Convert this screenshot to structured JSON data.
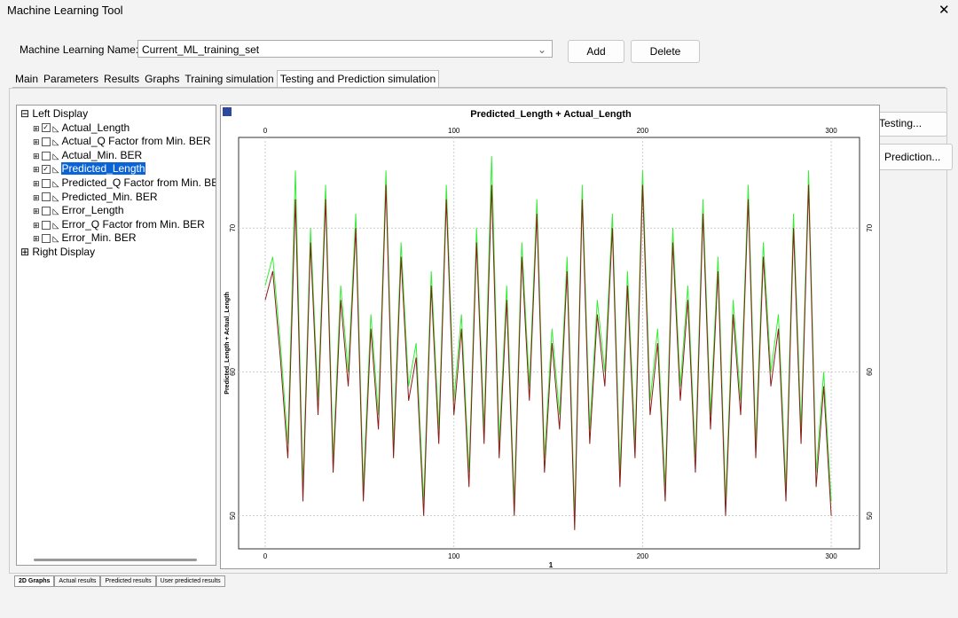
{
  "window": {
    "title": "Machine Learning Tool",
    "close": "✕"
  },
  "toolbar": {
    "name_label": "Machine Learning Name:",
    "name_value": "Current_ML_training_set",
    "add": "Add",
    "delete": "Delete"
  },
  "tabs": [
    "Main",
    "Parameters",
    "Results",
    "Graphs",
    "Training simulation",
    "Testing and Prediction simulation"
  ],
  "tree": {
    "left": "Left Display",
    "right": "Right Display",
    "items": [
      {
        "label": "Actual_Length",
        "checked": true
      },
      {
        "label": "Actual_Q Factor from Min. BER",
        "checked": false
      },
      {
        "label": "Actual_Min. BER",
        "checked": false
      },
      {
        "label": "Predicted_Length",
        "checked": true
      },
      {
        "label": "Predicted_Q Factor from Min. BER",
        "checked": false
      },
      {
        "label": "Predicted_Min. BER",
        "checked": false
      },
      {
        "label": "Error_Length",
        "checked": false
      },
      {
        "label": "Error_Q Factor from Min. BER",
        "checked": false
      },
      {
        "label": "Error_Min. BER",
        "checked": false
      }
    ]
  },
  "side_buttons": [
    "Testing...",
    "Prediction..."
  ],
  "bottom_tabs": [
    "2D Graphs",
    "Actual results",
    "Predicted results",
    "User predicted results"
  ],
  "chart_data": {
    "type": "line",
    "title": "Predicted_Length + Actual_Length",
    "xlabel": "1",
    "ylabel": "Predicted_Length + Actual_Length",
    "x": [
      0,
      4,
      8,
      12,
      16,
      20,
      24,
      28,
      32,
      36,
      40,
      44,
      48,
      52,
      56,
      60,
      64,
      68,
      72,
      76,
      80,
      84,
      88,
      92,
      96,
      100,
      104,
      108,
      112,
      116,
      120,
      124,
      128,
      132,
      136,
      140,
      144,
      148,
      152,
      156,
      160,
      164,
      168,
      172,
      176,
      180,
      184,
      188,
      192,
      196,
      200,
      204,
      208,
      212,
      216,
      220,
      224,
      228,
      232,
      236,
      240,
      244,
      248,
      252,
      256,
      260,
      264,
      268,
      272,
      276,
      280,
      284,
      288,
      292,
      296,
      300
    ],
    "series": [
      {
        "name": "Actual_Length",
        "color": "#33ee33",
        "values": [
          66,
          68,
          62,
          55,
          74,
          52,
          70,
          58,
          73,
          54,
          66,
          60,
          71,
          52,
          64,
          57,
          74,
          55,
          69,
          59,
          62,
          51,
          67,
          56,
          73,
          58,
          64,
          53,
          70,
          56,
          75,
          55,
          66,
          51,
          69,
          59,
          72,
          54,
          63,
          57,
          68,
          50,
          73,
          56,
          65,
          60,
          71,
          53,
          67,
          55,
          74,
          58,
          63,
          52,
          70,
          59,
          66,
          54,
          72,
          57,
          68,
          51,
          65,
          58,
          73,
          55,
          69,
          60,
          64,
          52,
          71,
          56,
          74,
          53,
          60,
          51
        ]
      },
      {
        "name": "Predicted_Length",
        "color": "#8b1a1a",
        "values": [
          65,
          67,
          61,
          54,
          72,
          51,
          69,
          57,
          72,
          53,
          65,
          59,
          70,
          51,
          63,
          56,
          73,
          54,
          68,
          58,
          61,
          50,
          66,
          55,
          72,
          57,
          63,
          52,
          69,
          55,
          73,
          54,
          65,
          50,
          68,
          58,
          71,
          53,
          62,
          56,
          67,
          49,
          72,
          55,
          64,
          59,
          70,
          52,
          66,
          54,
          73,
          57,
          62,
          51,
          69,
          58,
          65,
          53,
          71,
          56,
          67,
          50,
          64,
          57,
          72,
          54,
          68,
          59,
          63,
          51,
          70,
          55,
          73,
          52,
          59,
          50
        ]
      }
    ],
    "xlim": [
      -14.1,
      315
    ],
    "xticks": [
      0,
      100,
      200,
      300
    ],
    "ylim": [
      47.7,
      76.3
    ],
    "yticks": [
      50,
      60,
      70
    ],
    "grid": true
  }
}
